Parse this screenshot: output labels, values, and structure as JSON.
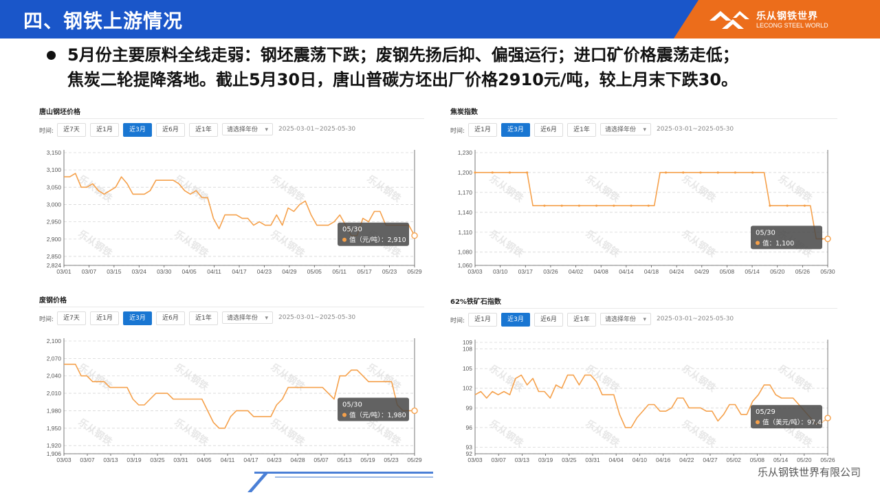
{
  "header": {
    "title": "四、钢铁上游情况"
  },
  "logo": {
    "cn": "乐从钢铁世界",
    "en": "LECONG STEEL WORLD",
    "color": "#ec6d1b"
  },
  "bullet": {
    "line1": "5月份主要原料全线走弱：钢坯震荡下跌；废钢先扬后抑、偏强运行；进口矿价格震荡走低；",
    "line2": "焦炭二轮提降落地。截止5月30日，唐山普碳方坯出厂价格2910元/吨，较上月末下跌30。"
  },
  "footer": {
    "company": "乐从钢铁世界有限公司"
  },
  "line_color": "#f5a04a",
  "watermark": "乐从钢铁",
  "panels": [
    {
      "title": "唐山钢坯价格",
      "filter": {
        "label": "时间:",
        "buttons": [
          "近7天",
          "近1月",
          "近3月",
          "近6月",
          "近1年"
        ],
        "active": 2,
        "select": "请选择年份",
        "range": "2025-03-01~2025-05-30"
      },
      "tooltip": {
        "date": "05/30",
        "label": "值（元/吨）：2,910"
      }
    },
    {
      "title": "焦炭指数",
      "filter": {
        "label": "时间:",
        "buttons": [
          "近1月",
          "近3月",
          "近6月",
          "近1年"
        ],
        "active": 1,
        "select": "请选择年份",
        "range": "2025-03-01~2025-05-30"
      },
      "tooltip": {
        "date": "05/30",
        "label": "值：1,100"
      }
    },
    {
      "title": "废钢价格",
      "filter": {
        "label": "时间:",
        "buttons": [
          "近7天",
          "近1月",
          "近3月",
          "近6月",
          "近1年"
        ],
        "active": 2,
        "select": "请选择年份",
        "range": "2025-03-01~2025-05-30"
      },
      "tooltip": {
        "date": "05/30",
        "label": "值（元/吨）：1,980"
      }
    },
    {
      "title": "62%铁矿石指数",
      "filter": {
        "label": "时间:",
        "buttons": [
          "近1月",
          "近3月",
          "近6月",
          "近1年"
        ],
        "active": 1,
        "select": "请选择年份",
        "range": "2025-03-01~2025-05-30"
      },
      "tooltip": {
        "date": "05/29",
        "label": "值（美元/吨）：97.45"
      }
    }
  ],
  "chart_data": [
    {
      "type": "line",
      "title": "唐山钢坯价格",
      "ylim": [
        2824,
        3150
      ],
      "yticks": [
        2824,
        2850,
        2900,
        2950,
        3000,
        3050,
        3100,
        3150
      ],
      "xticks": [
        "03/01",
        "03/07",
        "03/15",
        "03/24",
        "03/30",
        "04/05",
        "04/11",
        "04/17",
        "04/23",
        "04/29",
        "05/05",
        "05/11",
        "05/17",
        "05/23",
        "05/29"
      ],
      "x_count": 62,
      "series": [
        {
          "values": [
            3080,
            3080,
            3090,
            3050,
            3050,
            3060,
            3040,
            3030,
            3040,
            3050,
            3080,
            3060,
            3030,
            3030,
            3030,
            3040,
            3070,
            3070,
            3070,
            3070,
            3060,
            3040,
            3030,
            3040,
            3020,
            3020,
            2960,
            2930,
            2970,
            2970,
            2970,
            2960,
            2960,
            2940,
            2950,
            2940,
            2940,
            2970,
            2940,
            2990,
            2980,
            3000,
            3010,
            2970,
            2940,
            2940,
            2940,
            2950,
            2970,
            2940,
            2910,
            2910,
            2960,
            2950,
            2980,
            2980,
            2940,
            2940,
            2940,
            2940,
            2940,
            2910
          ]
        }
      ],
      "grid": true
    },
    {
      "type": "line",
      "title": "焦炭指数",
      "ylim": [
        1060,
        1230
      ],
      "yticks": [
        1060,
        1080,
        1110,
        1140,
        1170,
        1200,
        1230
      ],
      "xticks": [
        "03/03",
        "03/10",
        "03/17",
        "03/26",
        "04/02",
        "04/08",
        "04/14",
        "04/18",
        "04/24",
        "04/29",
        "05/08",
        "05/14",
        "05/20",
        "05/26",
        "05/30"
      ],
      "x_count": 62,
      "series": [
        {
          "values": [
            1200,
            1200,
            1200,
            1200,
            1200,
            1200,
            1200,
            1200,
            1200,
            1200,
            1150,
            1150,
            1150,
            1150,
            1150,
            1150,
            1150,
            1150,
            1150,
            1150,
            1150,
            1150,
            1150,
            1150,
            1150,
            1150,
            1150,
            1150,
            1150,
            1150,
            1150,
            1150,
            1200,
            1200,
            1200,
            1200,
            1200,
            1200,
            1200,
            1200,
            1200,
            1200,
            1200,
            1200,
            1200,
            1200,
            1200,
            1200,
            1200,
            1200,
            1200,
            1150,
            1150,
            1150,
            1150,
            1150,
            1150,
            1150,
            1150,
            1100,
            1100,
            1100
          ]
        }
      ],
      "grid": true
    },
    {
      "type": "line",
      "title": "废钢价格",
      "ylim": [
        1906,
        2100
      ],
      "yticks": [
        1906,
        1920,
        1950,
        1980,
        2010,
        2040,
        2070,
        2100
      ],
      "xticks": [
        "03/03",
        "03/07",
        "03/13",
        "03/19",
        "03/25",
        "03/31",
        "04/05",
        "04/11",
        "04/17",
        "04/23",
        "04/28",
        "05/07",
        "05/13",
        "05/19",
        "05/23",
        "05/29"
      ],
      "x_count": 62,
      "series": [
        {
          "values": [
            2060,
            2060,
            2060,
            2040,
            2040,
            2030,
            2030,
            2030,
            2020,
            2020,
            2020,
            2020,
            2000,
            1990,
            1990,
            2000,
            2010,
            2010,
            2010,
            2000,
            2000,
            2000,
            2000,
            2000,
            2000,
            1980,
            1960,
            1950,
            1950,
            1970,
            1980,
            1980,
            1980,
            1970,
            1970,
            1970,
            1970,
            1990,
            2000,
            2020,
            2020,
            2020,
            2020,
            2020,
            2020,
            2020,
            2010,
            2000,
            2040,
            2040,
            2050,
            2050,
            2040,
            2030,
            2030,
            2030,
            2030,
            2030,
            1990,
            1980,
            1980,
            1980
          ]
        }
      ],
      "grid": true
    },
    {
      "type": "line",
      "title": "62%铁矿石指数",
      "ylim": [
        92,
        109
      ],
      "yticks": [
        92,
        93,
        96,
        99,
        102,
        105,
        108,
        109
      ],
      "xticks": [
        "03/03",
        "03/07",
        "03/13",
        "03/19",
        "03/25",
        "03/31",
        "04/04",
        "04/10",
        "04/16",
        "04/22",
        "04/27",
        "05/02",
        "05/08",
        "05/14",
        "05/20",
        "05/26"
      ],
      "x_count": 62,
      "series": [
        {
          "values": [
            101,
            101.5,
            100.5,
            101.5,
            101,
            101.5,
            101,
            103.5,
            104,
            102.5,
            103.5,
            101.5,
            101.5,
            100.5,
            102.5,
            102,
            104,
            104,
            102.5,
            104,
            104,
            103,
            101,
            101,
            101,
            98,
            96,
            96,
            97.5,
            98.5,
            99.5,
            99.5,
            98.5,
            98.5,
            99,
            100.5,
            100.5,
            99,
            99,
            99,
            98.5,
            98.5,
            97,
            98,
            99.5,
            99.5,
            98,
            98,
            100,
            101,
            102.5,
            102.5,
            101,
            100.5,
            100.5,
            100.5,
            99.5,
            98.5,
            97.5,
            96.5,
            96.8,
            97.45
          ]
        }
      ],
      "grid": true
    }
  ]
}
